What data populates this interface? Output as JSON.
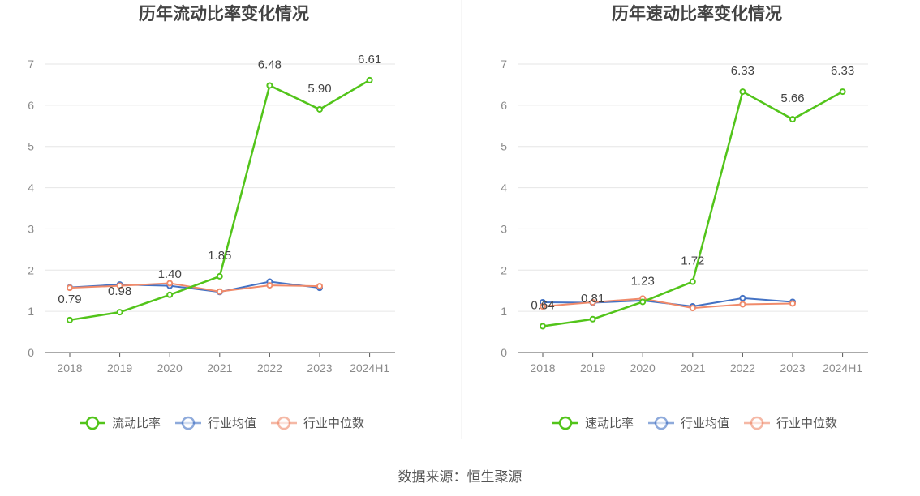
{
  "source": "数据来源：恒生聚源",
  "chart_data": [
    {
      "type": "line",
      "title": "历年流动比率变化情况",
      "categories": [
        "2018",
        "2019",
        "2020",
        "2021",
        "2022",
        "2023",
        "2024H1"
      ],
      "ylim": [
        0,
        7
      ],
      "yticks": [
        0,
        1,
        2,
        3,
        4,
        5,
        6,
        7
      ],
      "grid": true,
      "legend_position": "bottom",
      "series": [
        {
          "name": "流动比率",
          "color": "#52c41a",
          "values": [
            0.79,
            0.98,
            1.4,
            1.85,
            6.48,
            5.9,
            6.61
          ],
          "labels": [
            "0.79",
            "0.98",
            "1.40",
            "1.85",
            "6.48",
            "5.90",
            "6.61"
          ]
        },
        {
          "name": "行业均值",
          "color": "#4472c4",
          "values": [
            1.58,
            1.65,
            1.62,
            1.47,
            1.72,
            1.57,
            null
          ]
        },
        {
          "name": "行业中位数",
          "color": "#f08a6a",
          "values": [
            1.57,
            1.62,
            1.68,
            1.48,
            1.63,
            1.61,
            null
          ]
        }
      ]
    },
    {
      "type": "line",
      "title": "历年速动比率变化情况",
      "categories": [
        "2018",
        "2019",
        "2020",
        "2021",
        "2022",
        "2023",
        "2024H1"
      ],
      "ylim": [
        0,
        7
      ],
      "yticks": [
        0,
        1,
        2,
        3,
        4,
        5,
        6,
        7
      ],
      "grid": true,
      "legend_position": "bottom",
      "series": [
        {
          "name": "速动比率",
          "color": "#52c41a",
          "values": [
            0.64,
            0.81,
            1.23,
            1.72,
            6.33,
            5.66,
            6.33
          ],
          "labels": [
            "0.64",
            "0.81",
            "1.23",
            "1.72",
            "6.33",
            "5.66",
            "6.33"
          ]
        },
        {
          "name": "行业均值",
          "color": "#4472c4",
          "values": [
            1.22,
            1.21,
            1.26,
            1.12,
            1.32,
            1.23,
            null
          ]
        },
        {
          "name": "行业中位数",
          "color": "#f08a6a",
          "values": [
            1.12,
            1.22,
            1.31,
            1.08,
            1.17,
            1.19,
            null
          ]
        }
      ]
    }
  ]
}
